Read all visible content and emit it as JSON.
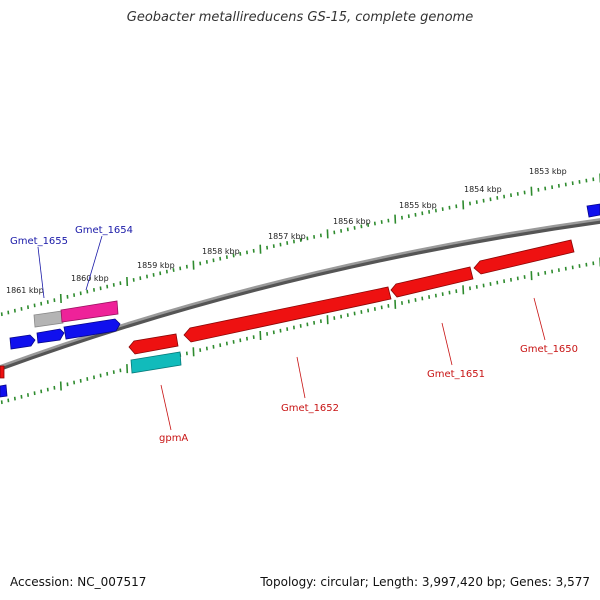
{
  "title": "Geobacter metallireducens GS-15, complete genome",
  "footer": {
    "accession": "Accession: NC_007517",
    "stats": "Topology: circular; Length: 3,997,420 bp; Genes: 3,577"
  },
  "colors": {
    "backbone": "#808080",
    "tick": "#2e8b2e",
    "forward_gene": "#1010ee",
    "reverse_gene": "#ee1111",
    "rna_gene": "#11bbbb",
    "pseudo_gene": "#b4b4b4",
    "highlight_gene": "#ee2299",
    "forward_label": "#1a1aa8",
    "reverse_label": "#c81414"
  },
  "kbp_labels": [
    "1853 kbp",
    "1854 kbp",
    "1855 kbp",
    "1856 kbp",
    "1857 kbp",
    "1858 kbp",
    "1859 kbp",
    "1860 kbp",
    "1861 kbp"
  ],
  "gene_labels": [
    {
      "name": "Gmet_1655",
      "strand": "forward"
    },
    {
      "name": "Gmet_1654",
      "strand": "forward"
    },
    {
      "name": "gpmA",
      "strand": "reverse"
    },
    {
      "name": "Gmet_1652",
      "strand": "reverse"
    },
    {
      "name": "Gmet_1651",
      "strand": "reverse"
    },
    {
      "name": "Gmet_1650",
      "strand": "reverse"
    }
  ]
}
